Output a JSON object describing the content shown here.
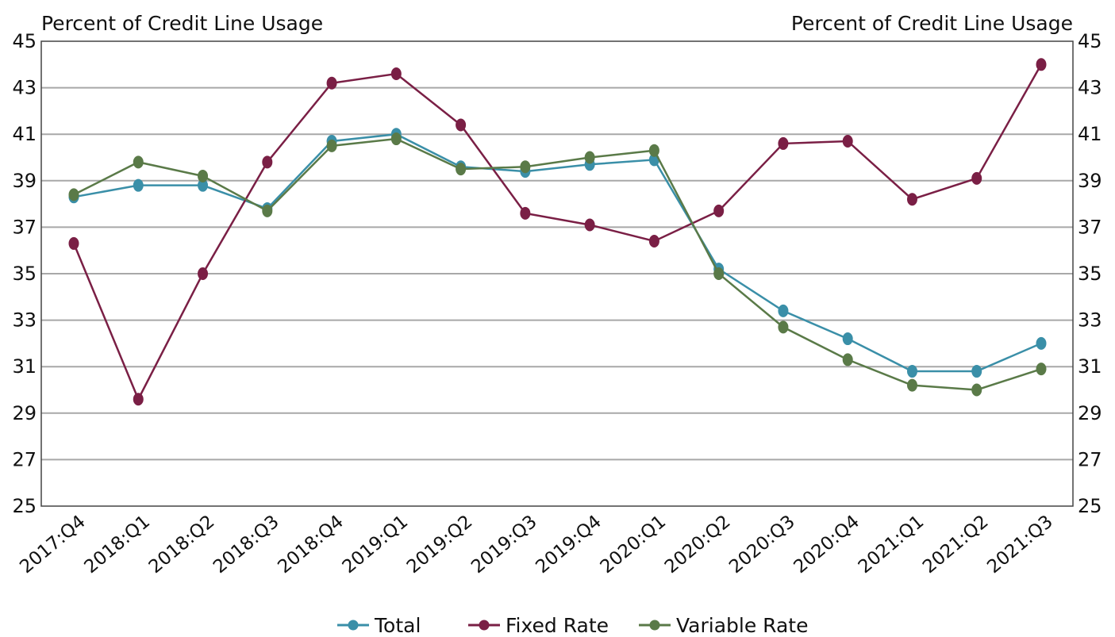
{
  "chart_data": {
    "type": "line",
    "title": "",
    "ylabel_left": "Percent of Credit Line Usage",
    "ylabel_right": "Percent of Credit Line Usage",
    "xlabel": "",
    "ylim": [
      25,
      45
    ],
    "y_ticks": [
      25,
      27,
      29,
      31,
      33,
      35,
      37,
      39,
      41,
      43,
      45
    ],
    "grid": true,
    "legend_position": "bottom",
    "categories": [
      "2017:Q4",
      "2018:Q1",
      "2018:Q2",
      "2018:Q3",
      "2018:Q4",
      "2019:Q1",
      "2019:Q2",
      "2019:Q3",
      "2019:Q4",
      "2020:Q1",
      "2020:Q2",
      "2020:Q3",
      "2020:Q4",
      "2021:Q1",
      "2021:Q2",
      "2021:Q3"
    ],
    "series": [
      {
        "name": "Total",
        "color": "#3a8fa8",
        "values": [
          38.3,
          38.8,
          38.8,
          37.8,
          40.7,
          41.0,
          39.6,
          39.4,
          39.7,
          39.9,
          35.2,
          33.4,
          32.2,
          30.8,
          30.8,
          32.0
        ]
      },
      {
        "name": "Fixed Rate",
        "color": "#7a1f45",
        "values": [
          36.3,
          29.6,
          35.0,
          39.8,
          43.2,
          43.6,
          41.4,
          37.6,
          37.1,
          36.4,
          37.7,
          40.6,
          40.7,
          38.2,
          39.1,
          44.0
        ]
      },
      {
        "name": "Variable Rate",
        "color": "#5a7a48",
        "values": [
          38.4,
          39.8,
          39.2,
          37.7,
          40.5,
          40.8,
          39.5,
          39.6,
          40.0,
          40.3,
          35.0,
          32.7,
          31.3,
          30.2,
          30.0,
          30.9
        ]
      }
    ]
  }
}
